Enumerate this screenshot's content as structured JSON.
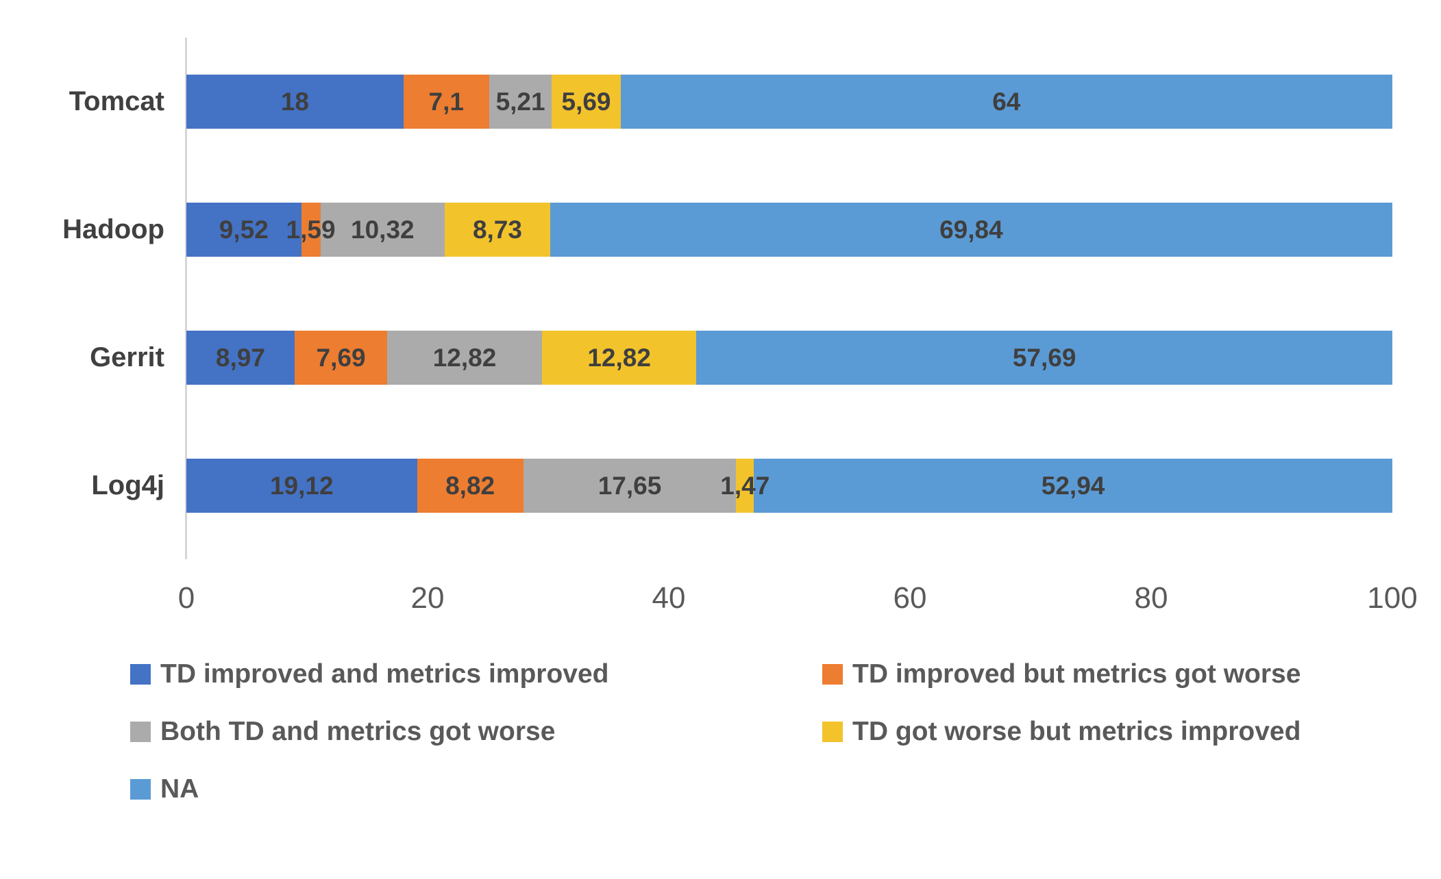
{
  "chart_data": {
    "type": "bar",
    "orientation": "horizontal",
    "stacked": true,
    "categories": [
      "Tomcat",
      "Hadoop",
      "Gerrit",
      "Log4j"
    ],
    "series": [
      {
        "name": "TD improved and metrics improved",
        "color": "#4472C4",
        "values": [
          18,
          9.52,
          8.97,
          19.12
        ],
        "labels": [
          "18",
          "9,52",
          "8,97",
          "19,12"
        ]
      },
      {
        "name": "TD improved but metrics got worse",
        "color": "#ED7D31",
        "values": [
          7.1,
          1.59,
          7.69,
          8.82
        ],
        "labels": [
          "7,1",
          "1,59",
          "7,69",
          "8,82"
        ]
      },
      {
        "name": "Both TD and metrics got worse",
        "color": "#ABABAB",
        "values": [
          5.21,
          10.32,
          12.82,
          17.65
        ],
        "labels": [
          "5,21",
          "10,32",
          "12,82",
          "17,65"
        ]
      },
      {
        "name": "TD got worse but metrics improved",
        "color": "#F3C32C",
        "values": [
          5.69,
          8.73,
          12.82,
          1.47
        ],
        "labels": [
          "5,69",
          "8,73",
          "12,82",
          "1,47"
        ]
      },
      {
        "name": "NA",
        "color": "#5B9BD5",
        "values": [
          64,
          69.84,
          57.69,
          52.94
        ],
        "labels": [
          "64",
          "69,84",
          "57,69",
          "52,94"
        ]
      }
    ],
    "x_axis": {
      "min": 0,
      "max": 100,
      "ticks": [
        0,
        20,
        40,
        60,
        80,
        100
      ]
    },
    "legend": {
      "position": "bottom",
      "columns": 2
    },
    "grid": false,
    "label_color": "#3f3f3f",
    "axis_color": "#d6d6d6"
  }
}
